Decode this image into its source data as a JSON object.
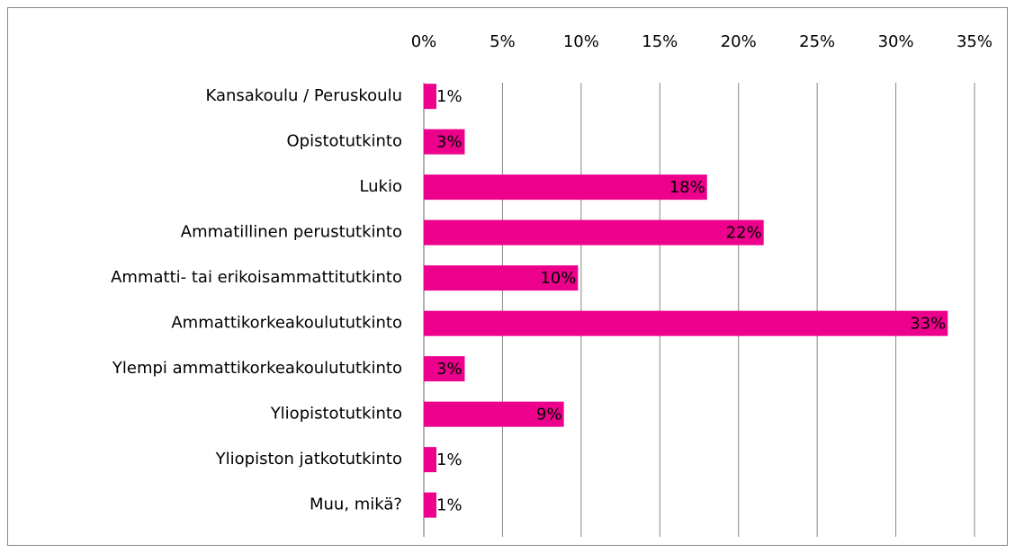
{
  "chart_data": {
    "type": "bar",
    "orientation": "horizontal",
    "categories": [
      "Kansakoulu / Peruskoulu",
      "Opistotutkinto",
      "Lukio",
      "Ammatillinen perustutkinto",
      "Ammatti- tai erikoisammattitutkinto",
      "Ammattikorkeakoulututkinto",
      "Ylempi ammattikorkeakoulututkinto",
      "Yliopistotutkinto",
      "Yliopiston jatkotutkinto",
      "Muu, mikä?"
    ],
    "values": [
      0.8,
      2.6,
      18.0,
      21.6,
      9.8,
      33.3,
      2.6,
      8.9,
      0.8,
      0.8
    ],
    "value_labels": [
      "1%",
      "3%",
      "18%",
      "22%",
      "10%",
      "33%",
      "3%",
      "9%",
      "1%",
      "1%"
    ],
    "color": "#ec008c",
    "xlim": [
      0,
      35
    ],
    "xticks": [
      {
        "value": 0,
        "label": "0%"
      },
      {
        "value": 5,
        "label": "5%"
      },
      {
        "value": 10,
        "label": "10%"
      },
      {
        "value": 15,
        "label": "15%"
      },
      {
        "value": 20,
        "label": "20%"
      },
      {
        "value": 25,
        "label": "25%"
      },
      {
        "value": 30,
        "label": "30%"
      },
      {
        "value": 35,
        "label": "35%"
      }
    ],
    "grid": true
  }
}
